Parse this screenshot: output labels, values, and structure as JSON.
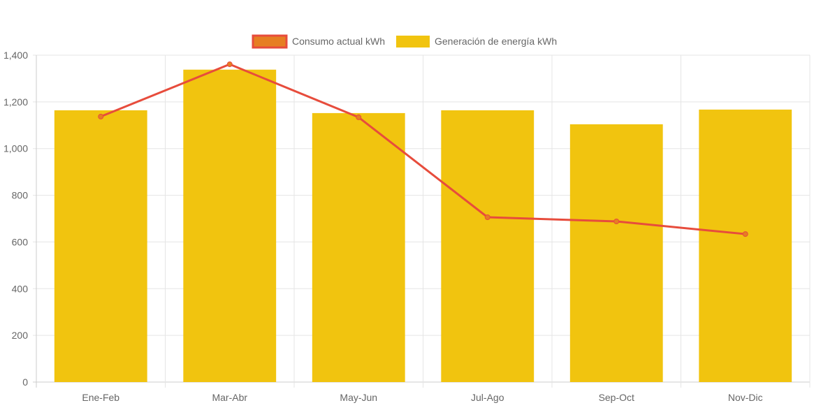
{
  "chart_data": {
    "type": "bar",
    "title": "",
    "xlabel": "",
    "ylabel": "",
    "categories": [
      "Ene-Feb",
      "Mar-Abr",
      "May-Jun",
      "Jul-Ago",
      "Sep-Oct",
      "Nov-Dic"
    ],
    "ylim": [
      0,
      1400
    ],
    "yticks": [
      0,
      200,
      400,
      600,
      800,
      1000,
      1200,
      1400
    ],
    "ytick_labels": [
      "0",
      "200",
      "400",
      "600",
      "800",
      "1,000",
      "1,200",
      "1,400"
    ],
    "grid": true,
    "legend_position": "top",
    "series": [
      {
        "name": "Consumo actual kWh",
        "type": "line",
        "color": "#e74c3c",
        "fill": "#e67e22",
        "values": [
          1137,
          1361,
          1134,
          706,
          688,
          634
        ]
      },
      {
        "name": "Generación de energía kWh",
        "type": "bar",
        "color": "#f1c40f",
        "values": [
          1164,
          1338,
          1152,
          1164,
          1104,
          1167
        ]
      }
    ]
  }
}
